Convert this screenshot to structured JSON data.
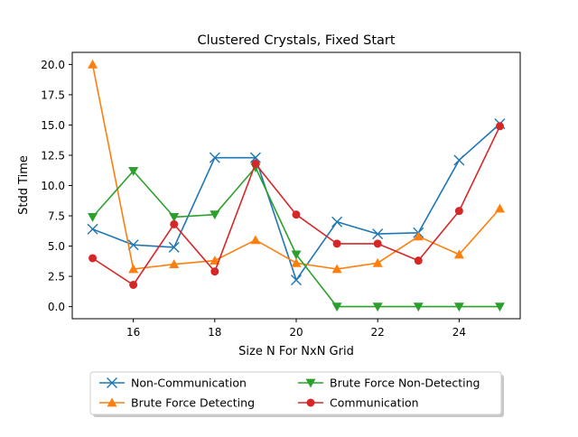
{
  "chart_data": {
    "type": "line",
    "title": "Clustered Crystals, Fixed Start",
    "xlabel": "Size N For NxN Grid",
    "ylabel": "Stdd Time",
    "xlim": [
      14.5,
      25.5
    ],
    "ylim": [
      -1.0,
      21.0
    ],
    "xticks": [
      16,
      18,
      20,
      22,
      24
    ],
    "yticks": [
      0.0,
      2.5,
      5.0,
      7.5,
      10.0,
      12.5,
      15.0,
      17.5,
      20.0
    ],
    "ytick_labels": [
      "0.0",
      "2.5",
      "5.0",
      "7.5",
      "10.0",
      "12.5",
      "15.0",
      "17.5",
      "20.0"
    ],
    "grid": false,
    "legend_position": "below-plot",
    "x": [
      15,
      16,
      17,
      18,
      19,
      20,
      21,
      22,
      23,
      24,
      25
    ],
    "series": [
      {
        "name": "Non-Communication",
        "color": "#1f77b4",
        "marker": "x",
        "values": [
          6.4,
          5.1,
          4.9,
          12.3,
          12.3,
          2.2,
          7.0,
          6.0,
          6.1,
          12.1,
          15.1
        ]
      },
      {
        "name": "Brute Force Detecting",
        "color": "#ff7f0e",
        "marker": "triangle-up",
        "values": [
          20.0,
          3.1,
          3.5,
          3.8,
          5.5,
          3.6,
          3.1,
          3.6,
          5.8,
          4.3,
          8.1
        ]
      },
      {
        "name": "Brute Force Non-Detecting",
        "color": "#2ca02c",
        "marker": "triangle-down",
        "values": [
          7.4,
          11.2,
          7.4,
          7.6,
          11.5,
          4.3,
          0.0,
          0.0,
          0.0,
          0.0,
          0.0
        ]
      },
      {
        "name": "Communication",
        "color": "#d62728",
        "marker": "circle",
        "values": [
          4.0,
          1.8,
          6.8,
          2.9,
          11.8,
          7.6,
          5.2,
          5.2,
          3.8,
          7.9,
          14.9
        ]
      }
    ]
  }
}
